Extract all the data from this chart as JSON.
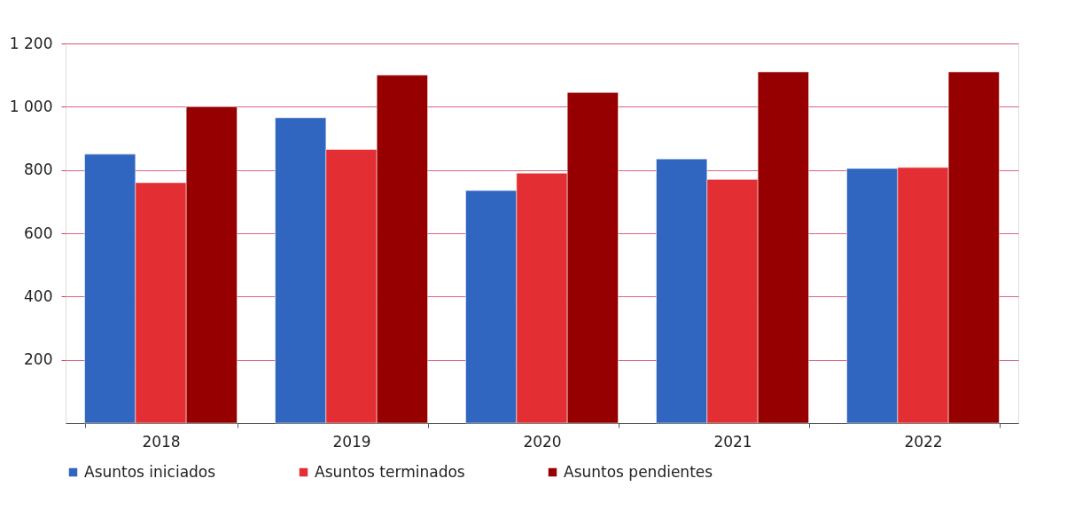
{
  "chart_data": {
    "type": "bar",
    "categories": [
      "2018",
      "2019",
      "2020",
      "2021",
      "2022"
    ],
    "series": [
      {
        "name": "Asuntos iniciados",
        "color": "#3066c0",
        "values": [
          850,
          965,
          735,
          835,
          805
        ]
      },
      {
        "name": "Asuntos terminados",
        "color": "#e32e33",
        "values": [
          760,
          865,
          790,
          770,
          808
        ]
      },
      {
        "name": "Asuntos pendientes",
        "color": "#960000",
        "values": [
          1000,
          1100,
          1045,
          1110,
          1110
        ]
      }
    ],
    "ylim": [
      0,
      1200
    ],
    "yticks": [
      200,
      400,
      600,
      800,
      {
        "value": 1000,
        "label": "1 000"
      },
      {
        "value": 1200,
        "label": "1 200"
      }
    ],
    "grid": "y",
    "legend": "bottom"
  }
}
